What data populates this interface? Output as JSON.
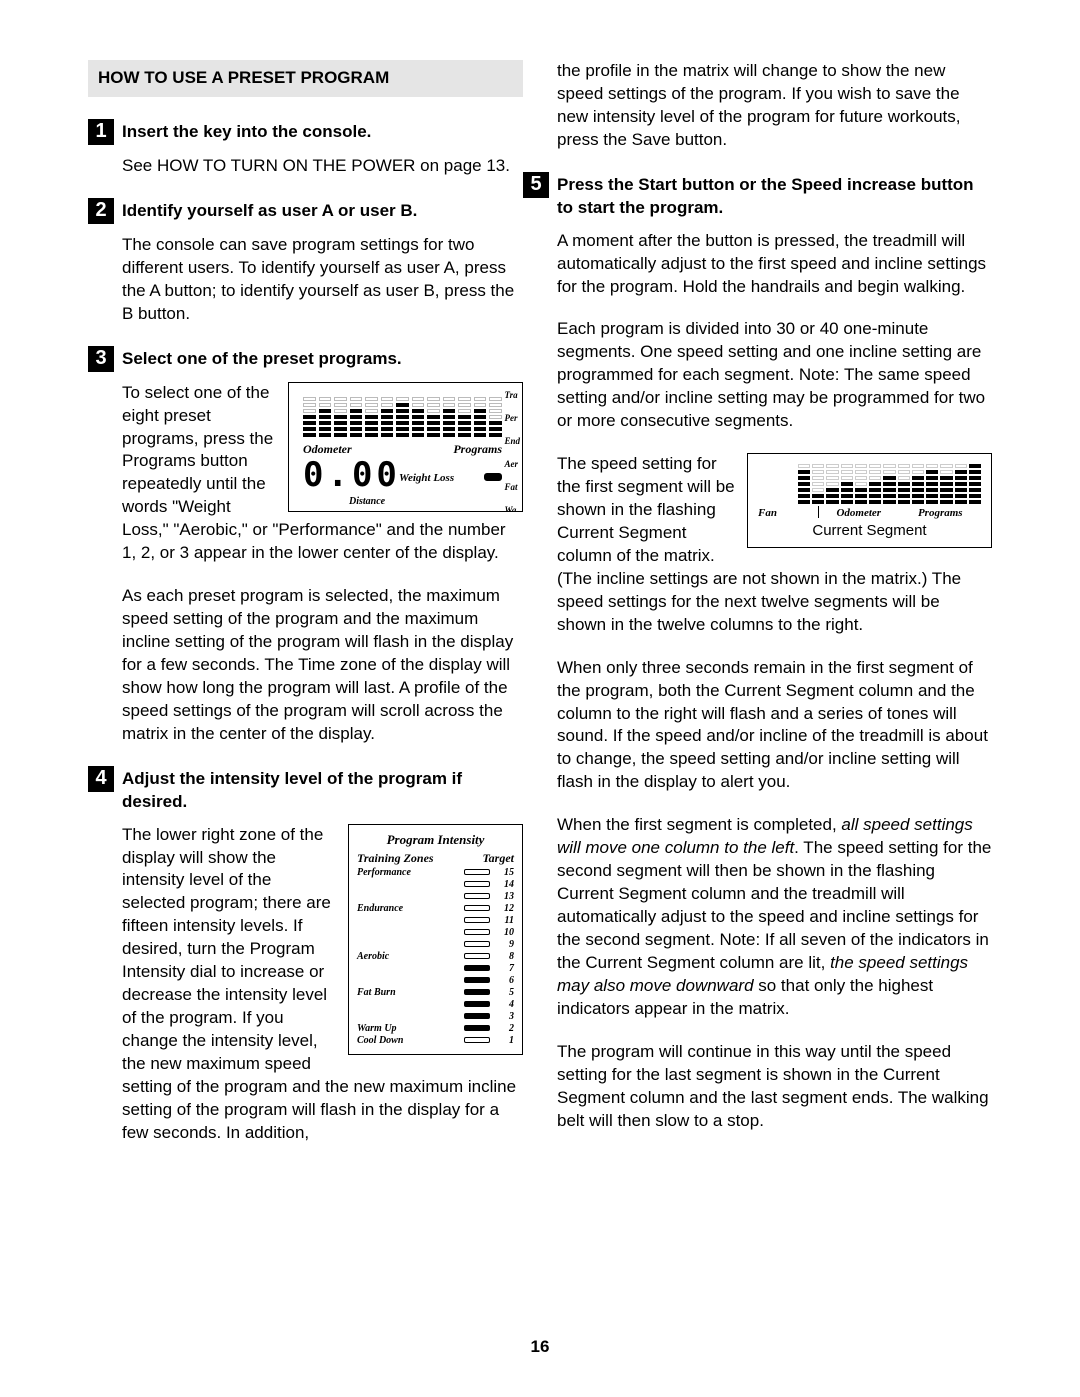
{
  "page_number": "16",
  "header": "HOW TO USE A PRESET PROGRAM",
  "steps": {
    "s1": {
      "num": "1",
      "title": "Insert the key into the console.",
      "p1": "See HOW TO TURN ON THE POWER on page 13."
    },
    "s2": {
      "num": "2",
      "title": "Identify yourself as user A or user B.",
      "p1": "The console can save program settings for two different users. To identify yourself as user A, press the A button; to identify yourself as user B, press the B button."
    },
    "s3": {
      "num": "3",
      "title": "Select one of the preset programs.",
      "p1a": "To select one of the eight preset programs, press the Programs button repeatedly until the",
      "p1b": "words \"Weight Loss,\" \"Aerobic,\" or \"Performance\" and the number 1, 2, or 3 appear in the lower center of the display.",
      "p2": "As each preset program is selected, the maximum speed setting of the program and the maximum incline setting of the program will flash in the display for a few seconds. The Time zone of the display will show how long the program will last. A profile of the speed settings of the program will scroll across the matrix in the center of the display."
    },
    "s4": {
      "num": "4",
      "title": "Adjust the intensity level of the program if desired.",
      "p1a": "The lower right zone of the display will show the intensity level of the selected program; there are fifteen intensity levels. If desired, turn the Program Intensity dial to increase or decrease the intensity level of the program. If you change the intensity level, the new",
      "p1b": "maximum speed setting of the program and the new maximum incline setting of the program will flash in the display for a few seconds. In addition,"
    },
    "top_right": "the profile in the matrix will change to show the new speed settings of the program. If you wish to save the new intensity level of the program for future workouts, press the Save button.",
    "s5": {
      "num": "5",
      "title": "Press the Start button or the Speed increase button to start the program.",
      "p1": "A moment after the button is pressed, the treadmill will automatically adjust to the first speed and incline settings for the program. Hold the handrails and begin walking.",
      "p2": "Each program is divided into 30 or 40 one-minute segments. One speed setting and one incline setting are programmed for each segment. Note: The same speed setting and/or incline setting may be programmed for two or more consecutive segments.",
      "p3a": "The speed setting for the first segment will be shown in the flashing Current",
      "p3b": "Segment column of the matrix. (The incline settings are not shown in the matrix.) The speed settings for the next twelve segments will be shown in the twelve columns to the right.",
      "p4": "When only three seconds remain in the first segment of the program, both the Current Segment column and the column to the right will flash and a series of tones will sound. If the speed and/or incline of the treadmill is about to change, the speed setting and/or incline setting will flash in the display to alert you.",
      "p5_a": "When the first segment is completed, ",
      "p5_i1": "all speed settings will move one column to the left",
      "p5_b": ". The speed setting for the second segment will then be shown in the flashing Current Segment column and the treadmill will automatically adjust to the speed and incline settings for the second segment. Note: If all seven of the indicators in the Current Segment column are lit, ",
      "p5_i2": "the speed settings may also move downward",
      "p5_c": " so that only the highest indicators appear in the matrix.",
      "p6": "The program will continue in this way until the speed setting for the last segment is shown in the Current Segment column and the last segment ends. The walking belt will then slow to a stop."
    }
  },
  "fig1": {
    "odometer": "Odometer",
    "programs": "Programs",
    "seg7": "0.00",
    "weight_loss": "Weight Loss",
    "distance": "Distance",
    "side": [
      "Tra",
      "Per",
      "End",
      "Aer",
      "Fat",
      "Wa"
    ],
    "cols": [
      4,
      5,
      4,
      5,
      4,
      5,
      6,
      5,
      4,
      5,
      4,
      5,
      3
    ]
  },
  "fig2": {
    "title": "Program Intensity",
    "h1": "Training Zones",
    "h2": "Target",
    "rows": [
      {
        "label": "Performance",
        "on": 0,
        "n": "15"
      },
      {
        "label": "",
        "on": 0,
        "n": "14"
      },
      {
        "label": "",
        "on": 0,
        "n": "13"
      },
      {
        "label": "Endurance",
        "on": 0,
        "n": "12"
      },
      {
        "label": "",
        "on": 0,
        "n": "11"
      },
      {
        "label": "",
        "on": 0,
        "n": "10"
      },
      {
        "label": "",
        "on": 0,
        "n": "9"
      },
      {
        "label": "Aerobic",
        "on": 0,
        "n": "8"
      },
      {
        "label": "",
        "on": 1,
        "n": "7"
      },
      {
        "label": "",
        "on": 1,
        "n": "6"
      },
      {
        "label": "Fat Burn",
        "on": 1,
        "n": "5"
      },
      {
        "label": "",
        "on": 1,
        "n": "4"
      },
      {
        "label": "",
        "on": 1,
        "n": "3"
      },
      {
        "label": "Warm Up",
        "on": 1,
        "n": "2"
      },
      {
        "label": "Cool Down",
        "on": 0,
        "n": "1"
      }
    ]
  },
  "fig3": {
    "fan": "Fan",
    "odometer": "Odometer",
    "programs": "Programs",
    "caption": "Current Segment",
    "cols": [
      6,
      2,
      3,
      4,
      3,
      4,
      5,
      4,
      5,
      6,
      5,
      6,
      7
    ]
  }
}
